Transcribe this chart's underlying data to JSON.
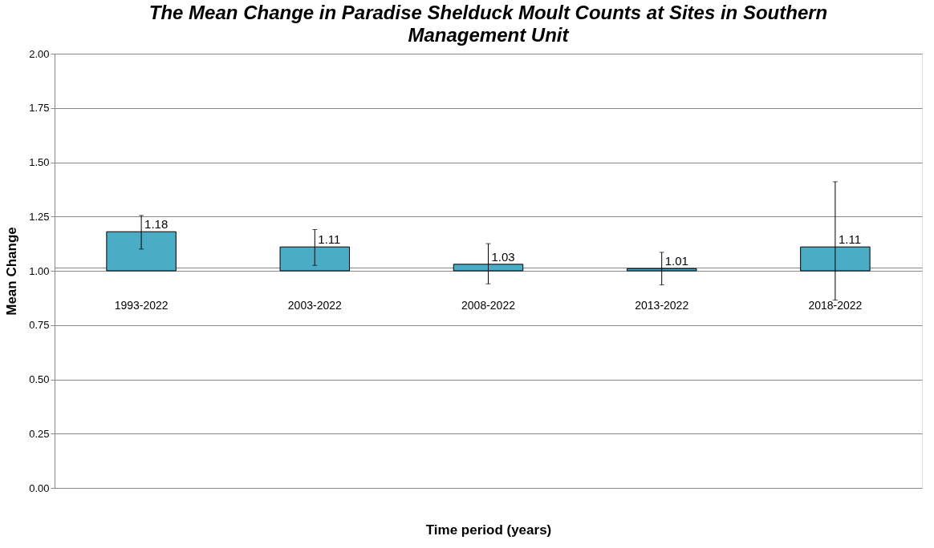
{
  "chart_data": {
    "type": "bar",
    "title": "The Mean Change in Paradise Shelduck Moult Counts at Sites in Southern Management Unit",
    "xlabel": "Time period (years)",
    "ylabel": "Mean Change",
    "categories": [
      "1993-2022",
      "2003-2022",
      "2008-2022",
      "2013-2022",
      "2018-2022"
    ],
    "base": [
      1,
      1,
      1,
      1,
      1
    ],
    "values": [
      0.18,
      0.11,
      0.03,
      0.01,
      0.11
    ],
    "value_labels": [
      "1.18",
      "1.11",
      "1.03",
      "1.01",
      "1.11"
    ],
    "errors": [
      [
        1.1,
        1.255
      ],
      [
        1.025,
        1.19
      ],
      [
        0.94,
        1.125
      ],
      [
        0.935,
        1.085
      ],
      [
        0.865,
        1.41
      ]
    ],
    "color": "#4bacc6",
    "ylim": [
      0,
      2
    ],
    "yticks": [
      {
        "value": 0,
        "label": "0.00"
      },
      {
        "value": 0.25,
        "label": "0.25"
      },
      {
        "value": 0.5,
        "label": "0.50"
      },
      {
        "value": 0.75,
        "label": "0.75"
      },
      {
        "value": 1,
        "label": "1.00"
      },
      {
        "value": 1.25,
        "label": "1.25"
      },
      {
        "value": 1.5,
        "label": "1.50"
      },
      {
        "value": 1.75,
        "label": "1.75"
      },
      {
        "value": 2,
        "label": "2.00"
      }
    ],
    "grid": "y"
  }
}
